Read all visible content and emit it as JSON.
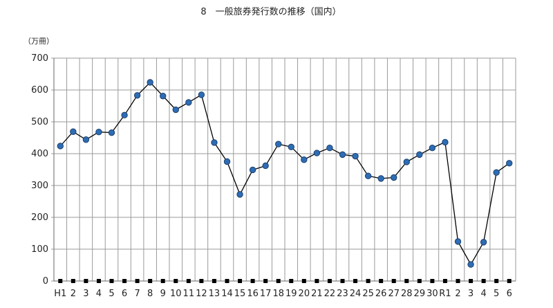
{
  "chart_data": {
    "type": "line",
    "title": "8　一般旅券発行数の推移（国内）",
    "unit_label": "（万冊）",
    "ylim": [
      0,
      700
    ],
    "yticks": [
      0,
      100,
      200,
      300,
      400,
      500,
      600,
      700
    ],
    "grid": true,
    "categories": [
      "H1",
      "2",
      "3",
      "4",
      "5",
      "6",
      "7",
      "8",
      "9",
      "10",
      "11",
      "12",
      "13",
      "14",
      "15",
      "16",
      "17",
      "18",
      "19",
      "20",
      "21",
      "22",
      "23",
      "24",
      "25",
      "26",
      "27",
      "28",
      "29",
      "30",
      "R1",
      "2",
      "3",
      "4",
      "5",
      "6"
    ],
    "series": [
      {
        "values": [
          424,
          469,
          444,
          468,
          466,
          521,
          583,
          624,
          581,
          538,
          561,
          585,
          435,
          375,
          272,
          349,
          362,
          430,
          421,
          381,
          402,
          418,
          397,
          392,
          330,
          322,
          325,
          374,
          397,
          418,
          436,
          124,
          52,
          122,
          341,
          370
        ],
        "color": "#2e6db4",
        "line_color": "#000000"
      },
      {
        "values": [
          0,
          0,
          0,
          0,
          0,
          0,
          0,
          0,
          0,
          0,
          0,
          0,
          0,
          0,
          0,
          0,
          0,
          0,
          0,
          0,
          0,
          0,
          0,
          0,
          0,
          0,
          0,
          0,
          0,
          0,
          0,
          0,
          0,
          0,
          0,
          0
        ],
        "color": "#000000",
        "marker": "square"
      }
    ]
  }
}
